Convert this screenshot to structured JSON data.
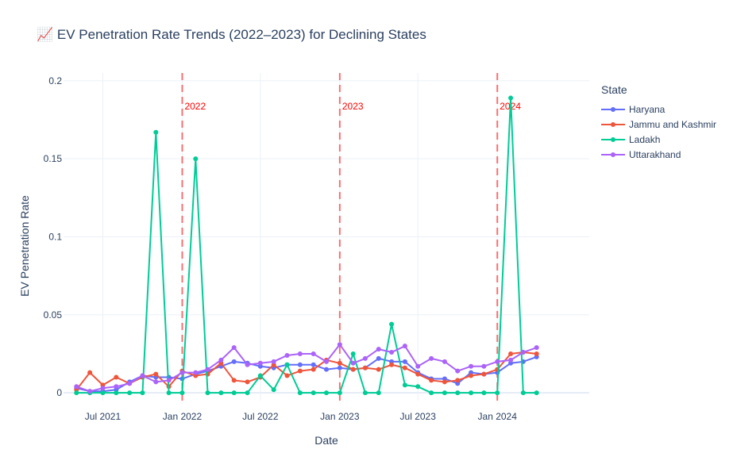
{
  "chart_data": {
    "type": "line",
    "title": "📈 EV Penetration Rate Trends (2022–2023) for Declining States",
    "xlabel": "Date",
    "ylabel": "EV Penetration Rate",
    "ylim": [
      -0.005,
      0.205
    ],
    "xlim": [
      "2021-04-01",
      "2024-08-01"
    ],
    "x_ticks": [
      "2021-07-01",
      "2022-01-01",
      "2022-07-01",
      "2023-01-01",
      "2023-07-01",
      "2024-01-01"
    ],
    "x_tick_labels": [
      "Jul 2021",
      "Jan 2022",
      "Jul 2022",
      "Jan 2023",
      "Jul 2023",
      "Jan 2024"
    ],
    "y_ticks": [
      0,
      0.05,
      0.1,
      0.15,
      0.2
    ],
    "y_tick_labels": [
      "0",
      "0.05",
      "0.1",
      "0.15",
      "0.2"
    ],
    "grid": true,
    "legend_title": "State",
    "legend_position": "right",
    "x": [
      "2021-05",
      "2021-06",
      "2021-07",
      "2021-08",
      "2021-09",
      "2021-10",
      "2021-11",
      "2021-12",
      "2022-01",
      "2022-02",
      "2022-03",
      "2022-04",
      "2022-05",
      "2022-06",
      "2022-07",
      "2022-08",
      "2022-09",
      "2022-10",
      "2022-11",
      "2022-12",
      "2023-01",
      "2023-02",
      "2023-03",
      "2023-04",
      "2023-05",
      "2023-06",
      "2023-07",
      "2023-08",
      "2023-09",
      "2023-10",
      "2023-11",
      "2023-12",
      "2024-01",
      "2024-02",
      "2024-03",
      "2024-04"
    ],
    "series": [
      {
        "name": "Haryana",
        "color": "#636efa",
        "values": [
          0.003,
          0.001,
          0.001,
          0.002,
          0.007,
          0.011,
          0.01,
          0.01,
          0.009,
          0.012,
          0.014,
          0.017,
          0.02,
          0.019,
          0.017,
          0.016,
          0.018,
          0.018,
          0.018,
          0.015,
          0.016,
          0.015,
          0.016,
          0.022,
          0.02,
          0.02,
          0.013,
          0.009,
          0.009,
          0.006,
          0.013,
          0.012,
          0.013,
          0.019,
          0.02,
          0.023
        ]
      },
      {
        "name": "Jammu and Kashmir",
        "color": "#ef553b",
        "values": [
          0.002,
          0.013,
          0.005,
          0.01,
          0.006,
          0.01,
          0.012,
          0.004,
          0.014,
          0.011,
          0.012,
          0.019,
          0.008,
          0.007,
          0.01,
          0.018,
          0.011,
          0.014,
          0.015,
          0.021,
          0.019,
          0.015,
          0.016,
          0.015,
          0.018,
          0.016,
          0.012,
          0.008,
          0.007,
          0.008,
          0.011,
          0.012,
          0.015,
          0.025,
          0.026,
          0.025
        ]
      },
      {
        "name": "Ladakh",
        "color": "#00cc96",
        "values": [
          0,
          0,
          0,
          0,
          0,
          0,
          0.167,
          0,
          0,
          0.15,
          0,
          0,
          0,
          0,
          0.011,
          0.002,
          0.018,
          0,
          0,
          0,
          0,
          0.025,
          0,
          0,
          0.044,
          0.005,
          0.004,
          0,
          0,
          0,
          0,
          0,
          0,
          0.189,
          0,
          0
        ]
      },
      {
        "name": "Uttarakhand",
        "color": "#ab63fa",
        "values": [
          0.004,
          0.001,
          0.003,
          0.004,
          0.006,
          0.011,
          0.007,
          0.008,
          0.013,
          0.013,
          0.015,
          0.021,
          0.029,
          0.018,
          0.019,
          0.02,
          0.024,
          0.025,
          0.025,
          0.02,
          0.031,
          0.019,
          0.022,
          0.028,
          0.026,
          0.03,
          0.017,
          0.022,
          0.02,
          0.014,
          0.017,
          0.017,
          0.02,
          0.021,
          0.026,
          0.029
        ]
      }
    ],
    "annotations": [
      {
        "x": "2022-01-01",
        "label": "2022",
        "color": "#ff0000"
      },
      {
        "x": "2023-01-01",
        "label": "2023",
        "color": "#ff0000"
      },
      {
        "x": "2024-01-01",
        "label": "2024",
        "color": "#ff0000"
      }
    ]
  }
}
